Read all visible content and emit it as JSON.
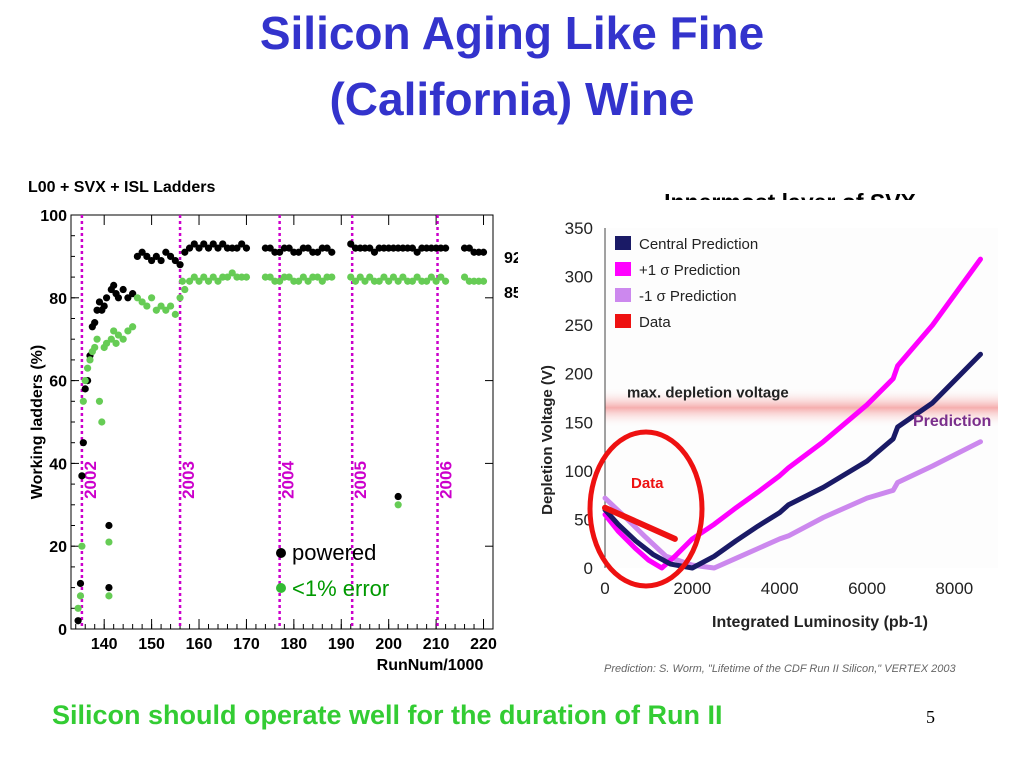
{
  "slide": {
    "title_line1": "Silicon Aging Like Fine",
    "title_line2": "(California) Wine",
    "footer": "Silicon should operate well for the duration of Run II",
    "page_number": "5"
  },
  "colors": {
    "title": "#3333cc",
    "footer": "#33cc33",
    "powered": "#000000",
    "error": "#66cc55",
    "year_line": "#cc00cc",
    "central": "#1a1a66",
    "plus_sigma": "#ff00ff",
    "minus_sigma": "#cc88ee",
    "data": "#ee1111"
  },
  "chart_data": [
    {
      "type": "scatter",
      "title": "L00 + SVX + ISL Ladders",
      "xlabel": "RunNum/1000",
      "ylabel": "Working ladders (%)",
      "xlim": [
        133,
        222
      ],
      "ylim": [
        0,
        100
      ],
      "xticks": [
        140,
        150,
        160,
        170,
        180,
        190,
        200,
        210,
        220
      ],
      "yticks": [
        0,
        20,
        40,
        60,
        80,
        100
      ],
      "grid": false,
      "year_markers": [
        {
          "x": 135.3,
          "label": "2002"
        },
        {
          "x": 156.0,
          "label": "2003"
        },
        {
          "x": 177.0,
          "label": "2004"
        },
        {
          "x": 192.3,
          "label": "2005"
        },
        {
          "x": 210.3,
          "label": "2006"
        }
      ],
      "legend": [
        "powered",
        "<1% error"
      ],
      "right_labels": [
        "92",
        "85"
      ],
      "series": [
        {
          "name": "powered",
          "points": [
            [
              134.5,
              2
            ],
            [
              135.0,
              11
            ],
            [
              135.3,
              37
            ],
            [
              135.6,
              45
            ],
            [
              136,
              58
            ],
            [
              136.5,
              60
            ],
            [
              137,
              66
            ],
            [
              137.5,
              73
            ],
            [
              138,
              74
            ],
            [
              138.5,
              77
            ],
            [
              139,
              79
            ],
            [
              139.5,
              77
            ],
            [
              140,
              78
            ],
            [
              140.5,
              80
            ],
            [
              141,
              25
            ],
            [
              141,
              10
            ],
            [
              141.5,
              82
            ],
            [
              142,
              83
            ],
            [
              142.5,
              81
            ],
            [
              143,
              80
            ],
            [
              144,
              82
            ],
            [
              145,
              80
            ],
            [
              146,
              81
            ],
            [
              147,
              90
            ],
            [
              148,
              91
            ],
            [
              149,
              90
            ],
            [
              150,
              89
            ],
            [
              151,
              90
            ],
            [
              152,
              89
            ],
            [
              153,
              91
            ],
            [
              154,
              90
            ],
            [
              155,
              89
            ],
            [
              156,
              88
            ],
            [
              157,
              91
            ],
            [
              158,
              92
            ],
            [
              159,
              93
            ],
            [
              160,
              92
            ],
            [
              161,
              93
            ],
            [
              162,
              92
            ],
            [
              163,
              93
            ],
            [
              164,
              92
            ],
            [
              165,
              93
            ],
            [
              166,
              92
            ],
            [
              167,
              92
            ],
            [
              168,
              92
            ],
            [
              169,
              93
            ],
            [
              170,
              92
            ],
            [
              174,
              92
            ],
            [
              175,
              92
            ],
            [
              176,
              91
            ],
            [
              177,
              91
            ],
            [
              178,
              92
            ],
            [
              179,
              92
            ],
            [
              180,
              91
            ],
            [
              181,
              91
            ],
            [
              182,
              92
            ],
            [
              183,
              92
            ],
            [
              184,
              91
            ],
            [
              185,
              91
            ],
            [
              186,
              92
            ],
            [
              187,
              92
            ],
            [
              188,
              91
            ],
            [
              192,
              93
            ],
            [
              193,
              92
            ],
            [
              194,
              92
            ],
            [
              195,
              92
            ],
            [
              196,
              92
            ],
            [
              197,
              91
            ],
            [
              198,
              92
            ],
            [
              199,
              92
            ],
            [
              200,
              92
            ],
            [
              201,
              92
            ],
            [
              202,
              92
            ],
            [
              202,
              32
            ],
            [
              203,
              92
            ],
            [
              204,
              92
            ],
            [
              205,
              92
            ],
            [
              206,
              91
            ],
            [
              207,
              92
            ],
            [
              208,
              92
            ],
            [
              209,
              92
            ],
            [
              210,
              92
            ],
            [
              211,
              92
            ],
            [
              212,
              92
            ],
            [
              216,
              92
            ],
            [
              217,
              92
            ],
            [
              218,
              91
            ],
            [
              219,
              91
            ],
            [
              220,
              91
            ]
          ]
        },
        {
          "name": "<1% error",
          "points": [
            [
              134.5,
              5
            ],
            [
              135.0,
              8
            ],
            [
              135.3,
              20
            ],
            [
              135.6,
              55
            ],
            [
              136,
              60
            ],
            [
              136.5,
              63
            ],
            [
              137,
              65
            ],
            [
              137.5,
              67
            ],
            [
              138,
              68
            ],
            [
              138.5,
              70
            ],
            [
              139,
              55
            ],
            [
              139.5,
              50
            ],
            [
              140,
              68
            ],
            [
              140.5,
              69
            ],
            [
              141,
              21
            ],
            [
              141,
              8
            ],
            [
              141.5,
              70
            ],
            [
              142,
              72
            ],
            [
              142.5,
              69
            ],
            [
              143,
              71
            ],
            [
              144,
              70
            ],
            [
              145,
              72
            ],
            [
              146,
              73
            ],
            [
              147,
              80
            ],
            [
              148,
              79
            ],
            [
              149,
              78
            ],
            [
              150,
              80
            ],
            [
              151,
              77
            ],
            [
              152,
              78
            ],
            [
              153,
              77
            ],
            [
              154,
              78
            ],
            [
              155,
              76
            ],
            [
              156,
              80
            ],
            [
              156.5,
              84
            ],
            [
              157,
              82
            ],
            [
              158,
              84
            ],
            [
              159,
              85
            ],
            [
              160,
              84
            ],
            [
              161,
              85
            ],
            [
              162,
              84
            ],
            [
              163,
              85
            ],
            [
              164,
              84
            ],
            [
              165,
              85
            ],
            [
              166,
              85
            ],
            [
              167,
              86
            ],
            [
              168,
              85
            ],
            [
              169,
              85
            ],
            [
              170,
              85
            ],
            [
              174,
              85
            ],
            [
              175,
              85
            ],
            [
              176,
              84
            ],
            [
              177,
              84
            ],
            [
              178,
              85
            ],
            [
              179,
              85
            ],
            [
              180,
              84
            ],
            [
              181,
              84
            ],
            [
              182,
              85
            ],
            [
              183,
              84
            ],
            [
              184,
              85
            ],
            [
              185,
              85
            ],
            [
              186,
              84
            ],
            [
              187,
              85
            ],
            [
              188,
              85
            ],
            [
              192,
              85
            ],
            [
              193,
              84
            ],
            [
              194,
              85
            ],
            [
              195,
              84
            ],
            [
              196,
              85
            ],
            [
              197,
              84
            ],
            [
              198,
              84
            ],
            [
              199,
              85
            ],
            [
              200,
              84
            ],
            [
              201,
              85
            ],
            [
              202,
              84
            ],
            [
              202,
              30
            ],
            [
              203,
              85
            ],
            [
              204,
              84
            ],
            [
              205,
              84
            ],
            [
              206,
              85
            ],
            [
              207,
              84
            ],
            [
              208,
              84
            ],
            [
              209,
              85
            ],
            [
              210,
              84
            ],
            [
              211,
              85
            ],
            [
              212,
              84
            ],
            [
              216,
              85
            ],
            [
              217,
              84
            ],
            [
              218,
              84
            ],
            [
              219,
              84
            ],
            [
              220,
              84
            ]
          ]
        }
      ]
    },
    {
      "type": "line",
      "title": "Innermost layer of SVX",
      "xlabel": "Integrated Luminosity (pb-1)",
      "ylabel": "Depletion Voltage (V)",
      "xlim": [
        0,
        9000
      ],
      "ylim": [
        0,
        350
      ],
      "xticks": [
        0,
        2000,
        4000,
        6000,
        8000
      ],
      "yticks": [
        0,
        50,
        100,
        150,
        200,
        250,
        300,
        350
      ],
      "grid": false,
      "legend_position": "top-left",
      "threshold": {
        "label": "max. depletion voltage",
        "value": 165
      },
      "annotations": [
        "Data",
        "Prediction"
      ],
      "citation": "Prediction: S. Worm, \"Lifetime of the CDF Run II Silicon,\" VERTEX 2003",
      "series": [
        {
          "name": "Central Prediction",
          "x": [
            0,
            300,
            700,
            1100,
            1500,
            2000,
            2500,
            3000,
            3500,
            4000,
            4200,
            5000,
            6000,
            6600,
            6700,
            7500,
            8600
          ],
          "y": [
            60,
            45,
            28,
            14,
            4,
            0,
            12,
            28,
            43,
            57,
            65,
            83,
            110,
            133,
            145,
            170,
            220
          ]
        },
        {
          "name": "+1 σ Prediction",
          "x": [
            0,
            300,
            700,
            1000,
            1300,
            1600,
            2000,
            2500,
            3000,
            3500,
            4000,
            4200,
            5000,
            6000,
            6600,
            6700,
            7500,
            8600
          ],
          "y": [
            55,
            38,
            20,
            8,
            0,
            12,
            30,
            45,
            62,
            78,
            95,
            103,
            130,
            168,
            195,
            208,
            250,
            318
          ]
        },
        {
          "name": "-1 σ Prediction",
          "x": [
            0,
            400,
            900,
            1400,
            2000,
            2500,
            3000,
            3500,
            4000,
            4200,
            5000,
            6000,
            6600,
            6700,
            7500,
            8600
          ],
          "y": [
            72,
            55,
            33,
            12,
            3,
            0,
            10,
            20,
            30,
            33,
            52,
            72,
            80,
            88,
            105,
            130
          ]
        },
        {
          "name": "Data",
          "x": [
            0,
            1600
          ],
          "y": [
            62,
            30
          ]
        }
      ]
    }
  ]
}
